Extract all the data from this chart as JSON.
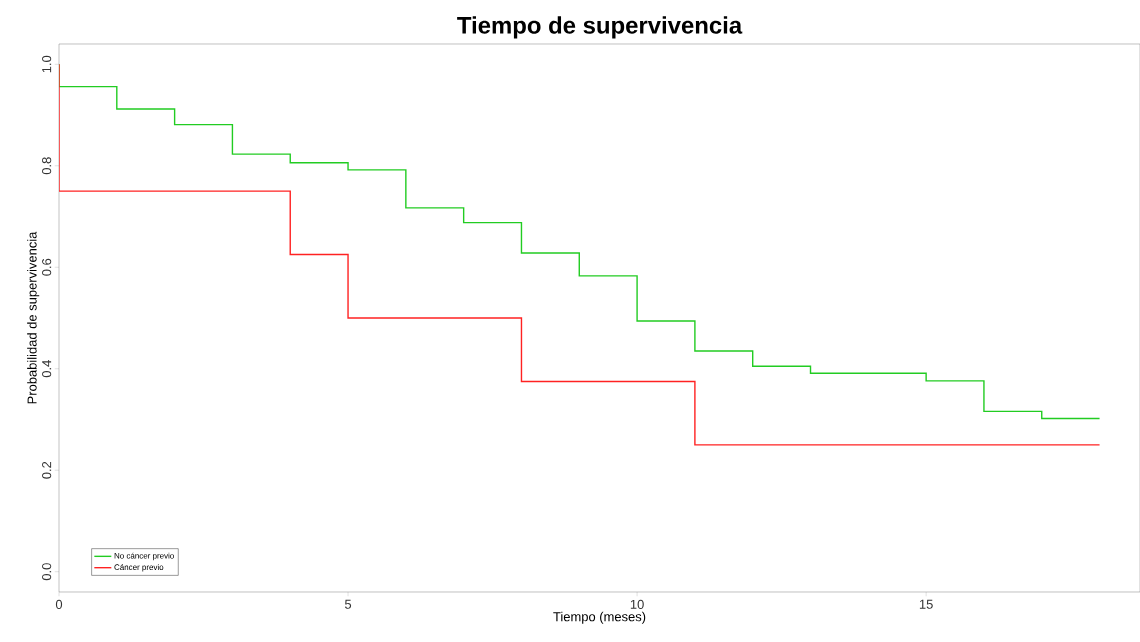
{
  "chart_data": {
    "type": "step",
    "title": "Tiempo de supervivencia",
    "xlabel": "Tiempo (meses)",
    "ylabel": "Probabilidad de supervivencia",
    "series": [
      {
        "name": "No cáncer previo",
        "color": "#22cc22",
        "x": [
          0,
          0,
          1,
          2,
          3,
          4,
          5,
          6,
          7,
          8,
          9,
          10,
          11,
          12,
          13,
          15,
          16,
          17,
          18
        ],
        "values": [
          1.0,
          0.956,
          0.912,
          0.881,
          0.823,
          0.806,
          0.792,
          0.717,
          0.688,
          0.628,
          0.583,
          0.494,
          0.435,
          0.405,
          0.391,
          0.376,
          0.316,
          0.302,
          0.302
        ]
      },
      {
        "name": "Cáncer previo",
        "color": "#ff2222",
        "x": [
          0,
          0,
          4,
          5,
          8,
          11,
          18
        ],
        "values": [
          1.0,
          0.75,
          0.625,
          0.5,
          0.375,
          0.25,
          0.25
        ]
      }
    ],
    "xlim": [
      0,
      18.7
    ],
    "ylim": [
      -0.04,
      1.04
    ],
    "xticks": [
      0,
      5,
      10,
      15
    ],
    "yticks": [
      {
        "value": 0,
        "label": "0.0"
      },
      {
        "value": 0.2,
        "label": "0.2"
      },
      {
        "value": 0.4,
        "label": "0.4"
      },
      {
        "value": 0.6,
        "label": "0.6"
      },
      {
        "value": 0.8,
        "label": "0.8"
      },
      {
        "value": 1.0,
        "label": "1.0"
      }
    ],
    "grid": false,
    "legend": "bottom left"
  }
}
